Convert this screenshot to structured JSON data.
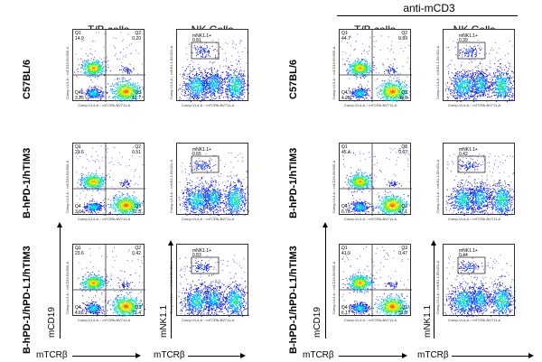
{
  "header": {
    "treatment_label": "anti-mCD3"
  },
  "columns": [
    "T/B cells",
    "NK Cells",
    "T/B cells",
    "NK Cells"
  ],
  "rows": [
    "C57BL/6",
    "B-hPD-1/hTIM3",
    "B-hPD-1/hPD-L1/hTIM3"
  ],
  "axes": {
    "tb_y": "mCD19",
    "tb_x": "mTCRβ",
    "nk_y": "mNK1.1",
    "nk_x": "mTCRβ",
    "tb_tiny_x": "Comp-VL4-A :: mTCRb-BV711-A",
    "tb_tiny_y": "Comp-VL3-A :: mCD19-BV605-A",
    "nk_tiny_y": "Comp-VL4-A :: mNK1.1-BV421-A"
  },
  "gate_label": "mNK1.1+",
  "quadrants": [
    [
      {
        "q1": "14.9",
        "q2": "0.20",
        "q3": "61.7",
        "q4": "3.26",
        "nk": "0.81"
      },
      {
        "q1": "44.7",
        "q2": "0.89",
        "q3": "49.8",
        "q4": "4.28",
        "nk": "0.39"
      }
    ],
    [
      {
        "q1": "23.6",
        "q2": "0.51",
        "q3": "72.3",
        "q4": "3.64",
        "nk": "0.65"
      },
      {
        "q1": "45.4",
        "q2": "0.67",
        "q3": "47.1",
        "q4": "6.76",
        "nk": "0.42"
      }
    ],
    [
      {
        "q1": "23.6",
        "q2": "0.42",
        "q3": "71.4",
        "q4": "4.56",
        "nk": "0.83"
      },
      {
        "q1": "41.9",
        "q2": "0.47",
        "q3": "51.3",
        "q4": "6.17",
        "nk": "0.44"
      }
    ]
  ],
  "quad_names": {
    "q1": "Q1",
    "q2": "Q2",
    "q3": "Q3",
    "q4": "Q4"
  }
}
